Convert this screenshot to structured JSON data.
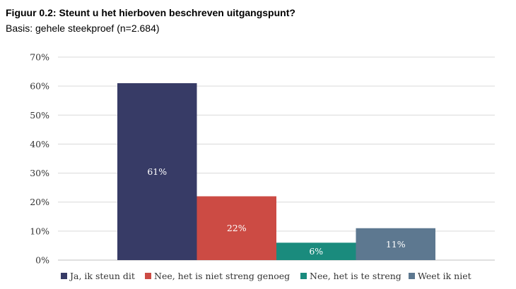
{
  "figure": {
    "title": "Figuur 0.2: Steunt u het hierboven beschreven uitgangspunt?",
    "subtitle": "Basis: gehele steekproef (n=2.684)"
  },
  "chart_data": {
    "type": "bar",
    "categories": [
      "Ja, ik steun dit",
      "Nee, het is niet streng genoeg",
      "Nee, het is te streng",
      "Weet ik niet"
    ],
    "values": [
      61,
      22,
      6,
      11
    ],
    "value_labels": [
      "61%",
      "22%",
      "6%",
      "11%"
    ],
    "colors": [
      "#373b66",
      "#cc4b44",
      "#1a8b7d",
      "#5d7890"
    ],
    "ylim": [
      0,
      70
    ],
    "yticks": [
      "0%",
      "10%",
      "20%",
      "30%",
      "40%",
      "50%",
      "60%",
      "70%"
    ],
    "grid": true,
    "legend_position": "bottom"
  }
}
